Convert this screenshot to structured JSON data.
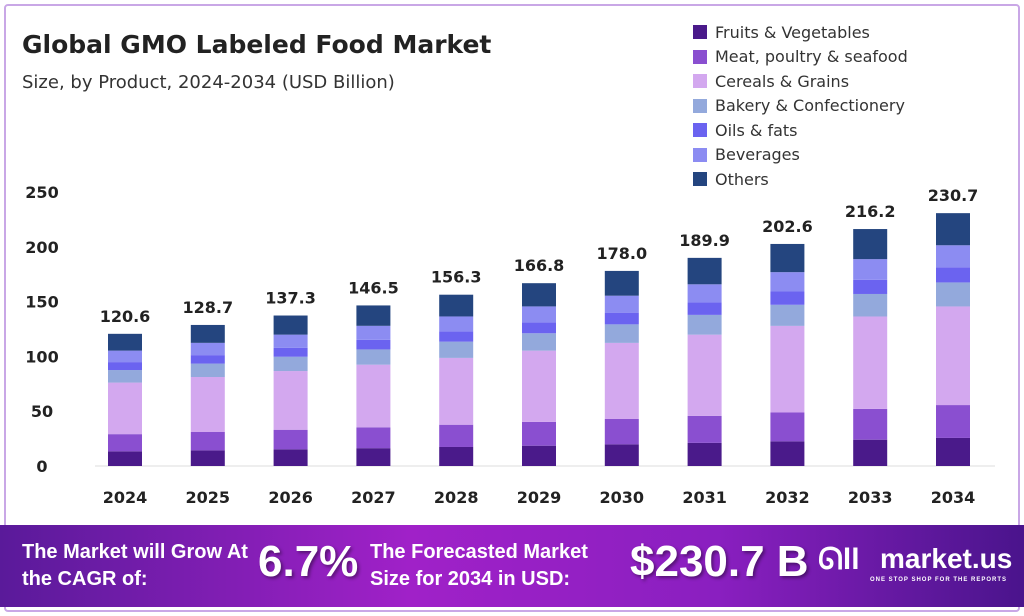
{
  "title": "Global GMO Labeled Food Market",
  "subtitle": "Size, by Product, 2024-2034 (USD Billion)",
  "chart_data": {
    "type": "bar",
    "stacked": true,
    "categories": [
      "2024",
      "2025",
      "2026",
      "2027",
      "2028",
      "2029",
      "2030",
      "2031",
      "2032",
      "2033",
      "2034"
    ],
    "totals": [
      120.6,
      128.7,
      137.3,
      146.5,
      156.3,
      166.8,
      178.0,
      189.9,
      202.6,
      216.2,
      230.7
    ],
    "total_labels": [
      "120.6",
      "128.7",
      "137.3",
      "146.5",
      "156.3",
      "166.8",
      "178.0",
      "189.9",
      "202.6",
      "216.2",
      "230.7"
    ],
    "series": [
      {
        "name": "Fruits & Vegetables",
        "color": "#4a1a8a",
        "share": 0.111
      },
      {
        "name": "Meat, poultry & seafood",
        "color": "#8a4fd0",
        "share": 0.13
      },
      {
        "name": "Cereals & Grains",
        "color": "#d3a8ef",
        "share": 0.39
      },
      {
        "name": "Bakery & Confectionery",
        "color": "#93a9dc",
        "share": 0.095
      },
      {
        "name": "Oils & fats",
        "color": "#6b63f0",
        "share": 0.06
      },
      {
        "name": "Beverages",
        "color": "#8c8cf2",
        "share": 0.087
      },
      {
        "name": "Others",
        "color": "#24457f",
        "share": 0.127
      }
    ],
    "ylim": [
      0,
      250
    ],
    "yticks": [
      "0",
      "50",
      "100",
      "150",
      "200",
      "250"
    ],
    "grid": false,
    "legend": "top-right"
  },
  "banner": {
    "text1": "The Market will Grow At the CAGR of:",
    "cagr": "6.7%",
    "text2": "The Forecasted Market Size for 2034 in USD:",
    "size": "$230.7 B",
    "logo": "market.us",
    "tagline": "ONE STOP SHOP FOR THE REPORTS"
  }
}
